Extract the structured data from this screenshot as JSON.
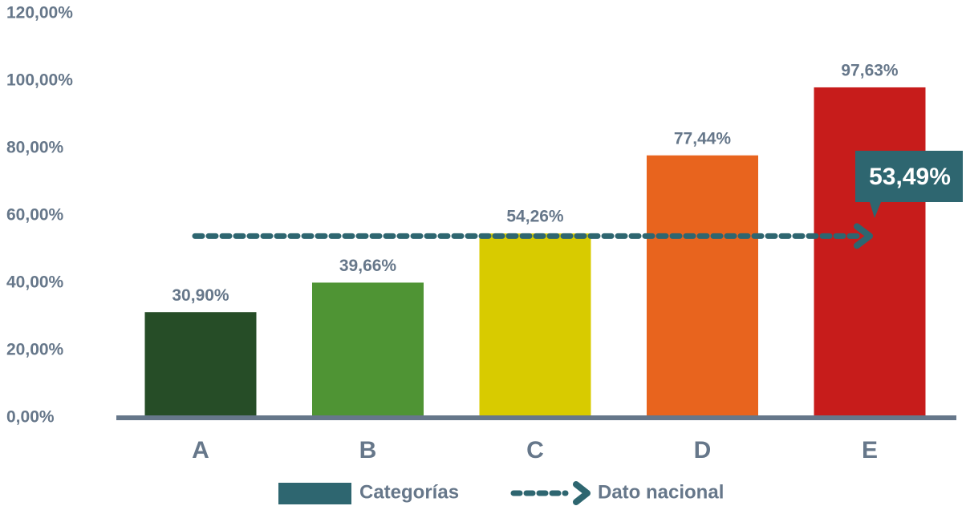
{
  "chart_data": {
    "type": "bar",
    "categories": [
      "A",
      "B",
      "C",
      "D",
      "E"
    ],
    "values": [
      30.9,
      39.66,
      54.26,
      77.44,
      97.63
    ],
    "value_labels": [
      "30,90%",
      "39,66%",
      "54,26%",
      "77,44%",
      "97,63%"
    ],
    "colors": [
      "#264d27",
      "#4f9434",
      "#d8cb00",
      "#e8641e",
      "#c71c1b"
    ],
    "ylim": [
      0,
      120
    ],
    "yticks": [
      {
        "value": 0,
        "label": "0,00%"
      },
      {
        "value": 20,
        "label": "20,00%"
      },
      {
        "value": 40,
        "label": "40,00%"
      },
      {
        "value": 60,
        "label": "60,00%"
      },
      {
        "value": 80,
        "label": "80,00%"
      },
      {
        "value": 100,
        "label": "100,00%"
      },
      {
        "value": 120,
        "label": "120,00%"
      }
    ],
    "series_name": "Categorías",
    "series_color": "#2e6670",
    "reference_line": {
      "name": "Dato nacional",
      "value": 53.49,
      "label": "53,49%",
      "color": "#2e6670"
    }
  }
}
